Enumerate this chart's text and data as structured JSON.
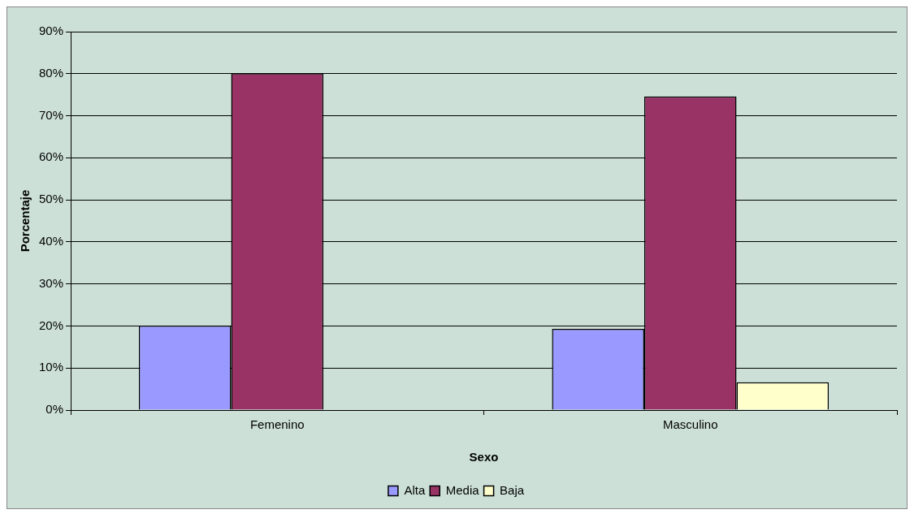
{
  "chart_data": {
    "type": "bar",
    "xlabel": "Sexo",
    "ylabel": "Porcentaje",
    "categories": [
      "Femenino",
      "Masculino"
    ],
    "series": [
      {
        "name": "Alta",
        "color": "#9999ff",
        "values": [
          20.1,
          19.3
        ]
      },
      {
        "name": "Media",
        "color": "#993366",
        "values": [
          80.1,
          74.6
        ]
      },
      {
        "name": "Baja",
        "color": "#ffffcc",
        "values": [
          null,
          6.6
        ]
      }
    ],
    "ylim": [
      0,
      90
    ],
    "yticks": [
      {
        "value": 0,
        "label": "0%"
      },
      {
        "value": 10,
        "label": "10%"
      },
      {
        "value": 20,
        "label": "20%"
      },
      {
        "value": 30,
        "label": "30%"
      },
      {
        "value": 40,
        "label": "40%"
      },
      {
        "value": 50,
        "label": "50%"
      },
      {
        "value": 60,
        "label": "60%"
      },
      {
        "value": 70,
        "label": "70%"
      },
      {
        "value": 80,
        "label": "80%"
      },
      {
        "value": 90,
        "label": "90%"
      }
    ],
    "grid": "y",
    "legend": "bottom"
  }
}
